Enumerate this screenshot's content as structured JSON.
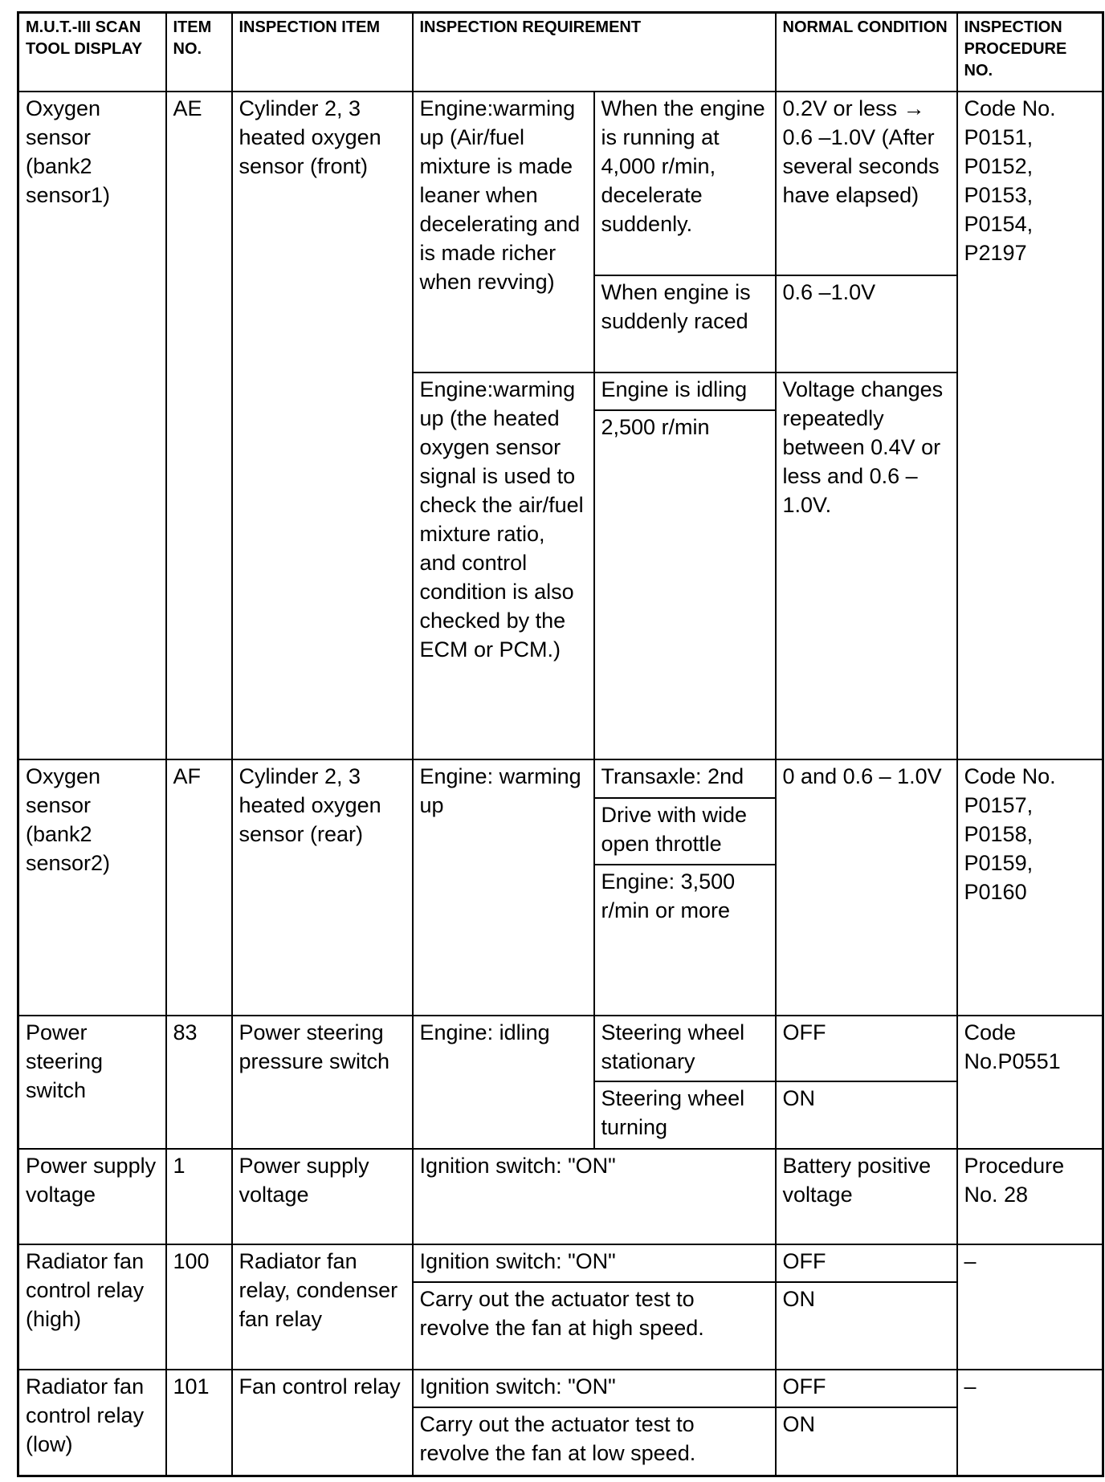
{
  "headers": [
    "M.U.T.-III SCAN TOOL DISPLAY",
    "ITEM NO.",
    "INSPECTION ITEM",
    "INSPECTION REQUIREMENT",
    "NORMAL CONDITION",
    "INSPECTION PROCEDURE NO."
  ],
  "rows": {
    "ae": {
      "display": "Oxygen sensor (bank2 sensor1)",
      "no": "AE",
      "item": "Cylinder 2, 3 heated oxygen sensor (front)",
      "req1": "Engine:warming up (Air/fuel mixture is made leaner when decelerating and is made richer when revving)",
      "cond1": "When the engine is running at 4,000 r/min, decelerate suddenly.",
      "normal1": "0.2V or less → 0.6 –1.0V (After several seconds have elapsed)",
      "cond2": "When engine is suddenly raced",
      "normal2": "0.6 –1.0V",
      "req2": "Engine:warming up (the heated oxygen sensor signal is used to check the air/fuel mixture ratio, and control condition is also checked by the ECM or PCM.)",
      "cond3": "Engine is idling",
      "cond4": "2,500 r/min",
      "normal3": "Voltage changes repeatedly between 0.4V or less and 0.6 –1.0V.",
      "proc": "Code No. P0151, P0152, P0153, P0154, P2197"
    },
    "af": {
      "display": "Oxygen sensor (bank2 sensor2)",
      "no": "AF",
      "item": "Cylinder 2, 3 heated oxygen sensor (rear)",
      "req": "Engine: warming up",
      "cond1": "Transaxle: 2nd",
      "cond2": "Drive with wide open throttle",
      "cond3": "Engine: 3,500 r/min or more",
      "normal": "0 and 0.6 – 1.0V",
      "proc": "Code No. P0157, P0158, P0159, P0160"
    },
    "ps": {
      "display": "Power steering switch",
      "no": "83",
      "item": "Power steering pressure switch",
      "req": "Engine: idling",
      "cond1": "Steering wheel stationary",
      "normal1": "OFF",
      "cond2": "Steering wheel turning",
      "normal2": "ON",
      "proc": "Code No.P0551"
    },
    "pv": {
      "display": "Power supply voltage",
      "no": "1",
      "item": "Power supply voltage",
      "req": "Ignition switch: \"ON\"",
      "normal": "Battery positive voltage",
      "proc": "Procedure No. 28"
    },
    "rh": {
      "display": "Radiator fan control relay (high)",
      "no": "100",
      "item": "Radiator fan relay, condenser fan relay",
      "req1": "Ignition switch: \"ON\"",
      "normal1": "OFF",
      "req2": "Carry out the actuator test to revolve the fan at high speed.",
      "normal2": "ON",
      "proc": "–"
    },
    "rl": {
      "display": "Radiator fan control relay (low)",
      "no": "101",
      "item": "Fan control relay",
      "req1": "Ignition switch: \"ON\"",
      "normal1": "OFF",
      "req2": "Carry out the actuator test to revolve the fan at low speed.",
      "normal2": "ON",
      "proc": "–"
    }
  }
}
